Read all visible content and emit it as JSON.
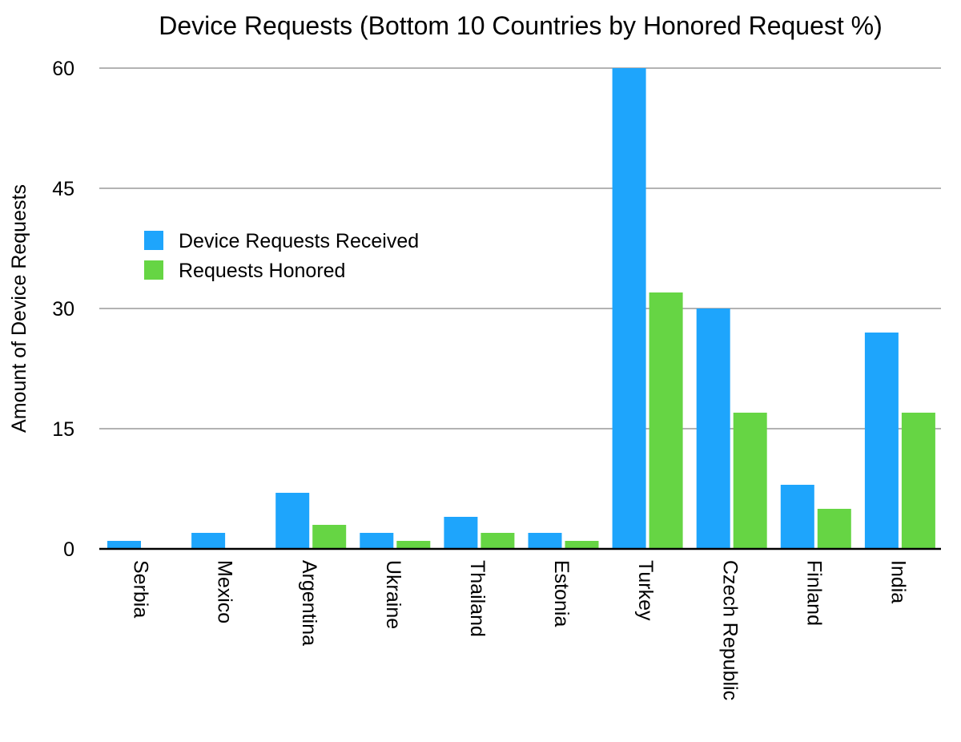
{
  "chart_data": {
    "type": "bar",
    "title": "Device Requests (Bottom 10 Countries by Honored Request %)",
    "xlabel": "",
    "ylabel": "Amount of Device Requests",
    "categories": [
      "Serbia",
      "Mexico",
      "Argentina",
      "Ukraine",
      "Thailand",
      "Estonia",
      "Turkey",
      "Czech Republic",
      "Finland",
      "India"
    ],
    "series": [
      {
        "name": "Device Requests Received",
        "color": "#1ea5fc",
        "values": [
          1,
          2,
          7,
          2,
          4,
          2,
          60,
          30,
          8,
          27
        ]
      },
      {
        "name": "Requests Honored",
        "color": "#66d544",
        "values": [
          0,
          0,
          3,
          1,
          2,
          1,
          32,
          17,
          5,
          17
        ]
      }
    ],
    "ylim": [
      0,
      60
    ],
    "yticks": [
      0,
      15,
      30,
      45,
      60
    ],
    "grid": true,
    "legend_position": "left"
  }
}
